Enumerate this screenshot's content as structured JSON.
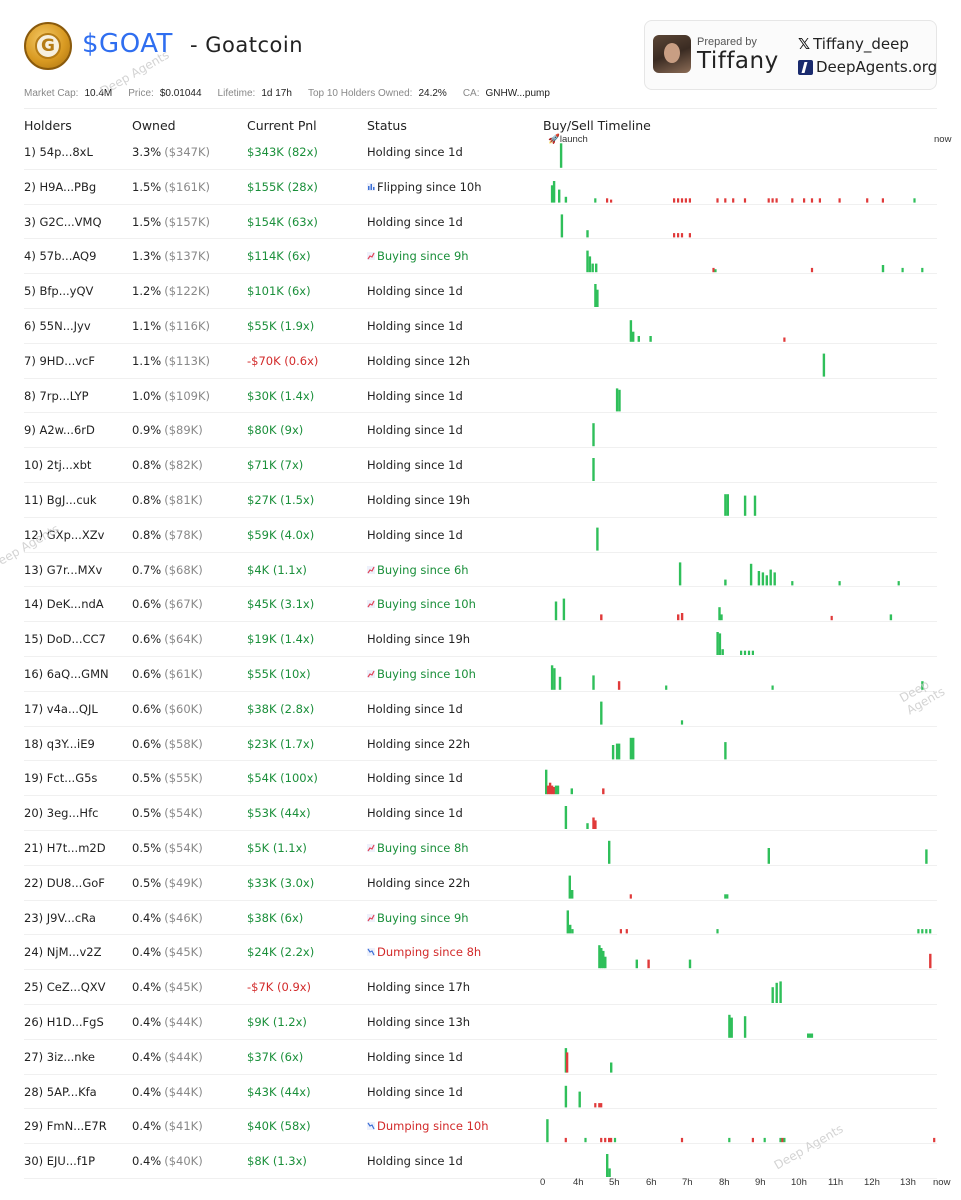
{
  "header": {
    "logo_letter": "G",
    "ticker": "$GOAT",
    "name": "- Goatcoin",
    "prepared_label": "Prepared by",
    "prepared_name": "Tiffany",
    "twitter_handle": "Tiffany_deep",
    "website": "DeepAgents.org",
    "x_icon": "𝕏"
  },
  "stats": {
    "market_cap_label": "Market Cap:",
    "market_cap": "10.4M",
    "price_label": "Price:",
    "price": "$0.01044",
    "lifetime_label": "Lifetime:",
    "lifetime": "1d 17h",
    "top10_label": "Top 10 Holders Owned:",
    "top10": "24.2%",
    "ca_label": "CA:",
    "ca": "GNHW...pump"
  },
  "columns": {
    "holders": "Holders",
    "owned": "Owned",
    "pnl": "Current Pnl",
    "status": "Status",
    "timeline": "Buy/Sell Timeline"
  },
  "timeline_labels": {
    "launch": "🚀launch",
    "now": "now"
  },
  "axis": [
    "0",
    "4h",
    "5h",
    "6h",
    "7h",
    "8h",
    "9h",
    "10h",
    "11h",
    "12h",
    "13h",
    "now"
  ],
  "watermark": "Deep Agents",
  "colors": {
    "buy": "#2fbf5a",
    "sell": "#e03a3a",
    "accent": "#2f6ef0"
  },
  "holders": [
    {
      "holder": "1) 54p...8xL",
      "pct": "3.3%",
      "usd": "($347K)",
      "pnl": "$343K (82x)",
      "pnl_sign": "pos",
      "status": "Holding since 1d",
      "kind": "holding"
    },
    {
      "holder": "2) H9A...PBg",
      "pct": "1.5%",
      "usd": "($161K)",
      "pnl": "$155K (28x)",
      "pnl_sign": "pos",
      "status": "Flipping since 10h",
      "kind": "flipping"
    },
    {
      "holder": "3) G2C...VMQ",
      "pct": "1.5%",
      "usd": "($157K)",
      "pnl": "$154K (63x)",
      "pnl_sign": "pos",
      "status": "Holding since 1d",
      "kind": "holding"
    },
    {
      "holder": "4) 57b...AQ9",
      "pct": "1.3%",
      "usd": "($137K)",
      "pnl": "$114K (6x)",
      "pnl_sign": "pos",
      "status": "Buying since 9h",
      "kind": "buying"
    },
    {
      "holder": "5) Bfp...yQV",
      "pct": "1.2%",
      "usd": "($122K)",
      "pnl": "$101K (6x)",
      "pnl_sign": "pos",
      "status": "Holding since 1d",
      "kind": "holding"
    },
    {
      "holder": "6) 55N...Jyv",
      "pct": "1.1%",
      "usd": "($116K)",
      "pnl": "$55K (1.9x)",
      "pnl_sign": "pos",
      "status": "Holding since 1d",
      "kind": "holding"
    },
    {
      "holder": "7) 9HD...vcF",
      "pct": "1.1%",
      "usd": "($113K)",
      "pnl": "-$70K (0.6x)",
      "pnl_sign": "neg",
      "status": "Holding since 12h",
      "kind": "holding"
    },
    {
      "holder": "8) 7rp...LYP",
      "pct": "1.0%",
      "usd": "($109K)",
      "pnl": "$30K (1.4x)",
      "pnl_sign": "pos",
      "status": "Holding since 1d",
      "kind": "holding"
    },
    {
      "holder": "9) A2w...6rD",
      "pct": "0.9%",
      "usd": "($89K)",
      "pnl": "$80K (9x)",
      "pnl_sign": "pos",
      "status": "Holding since 1d",
      "kind": "holding"
    },
    {
      "holder": "10) 2tj...xbt",
      "pct": "0.8%",
      "usd": "($82K)",
      "pnl": "$71K (7x)",
      "pnl_sign": "pos",
      "status": "Holding since 1d",
      "kind": "holding"
    },
    {
      "holder": "11) BgJ...cuk",
      "pct": "0.8%",
      "usd": "($81K)",
      "pnl": "$27K (1.5x)",
      "pnl_sign": "pos",
      "status": "Holding since 19h",
      "kind": "holding"
    },
    {
      "holder": "12) GXp...XZv",
      "pct": "0.8%",
      "usd": "($78K)",
      "pnl": "$59K (4.0x)",
      "pnl_sign": "pos",
      "status": "Holding since 1d",
      "kind": "holding"
    },
    {
      "holder": "13) G7r...MXv",
      "pct": "0.7%",
      "usd": "($68K)",
      "pnl": "$4K (1.1x)",
      "pnl_sign": "pos",
      "status": "Buying since 6h",
      "kind": "buying"
    },
    {
      "holder": "14) DeK...ndA",
      "pct": "0.6%",
      "usd": "($67K)",
      "pnl": "$45K (3.1x)",
      "pnl_sign": "pos",
      "status": "Buying since 10h",
      "kind": "buying"
    },
    {
      "holder": "15) DoD...CC7",
      "pct": "0.6%",
      "usd": "($64K)",
      "pnl": "$19K (1.4x)",
      "pnl_sign": "pos",
      "status": "Holding since 19h",
      "kind": "holding"
    },
    {
      "holder": "16) 6aQ...GMN",
      "pct": "0.6%",
      "usd": "($61K)",
      "pnl": "$55K (10x)",
      "pnl_sign": "pos",
      "status": "Buying since 10h",
      "kind": "buying"
    },
    {
      "holder": "17) v4a...QJL",
      "pct": "0.6%",
      "usd": "($60K)",
      "pnl": "$38K (2.8x)",
      "pnl_sign": "pos",
      "status": "Holding since 1d",
      "kind": "holding"
    },
    {
      "holder": "18) q3Y...iE9",
      "pct": "0.6%",
      "usd": "($58K)",
      "pnl": "$23K (1.7x)",
      "pnl_sign": "pos",
      "status": "Holding since 22h",
      "kind": "holding"
    },
    {
      "holder": "19) Fct...G5s",
      "pct": "0.5%",
      "usd": "($55K)",
      "pnl": "$54K (100x)",
      "pnl_sign": "pos",
      "status": "Holding since 1d",
      "kind": "holding"
    },
    {
      "holder": "20) 3eg...Hfc",
      "pct": "0.5%",
      "usd": "($54K)",
      "pnl": "$53K (44x)",
      "pnl_sign": "pos",
      "status": "Holding since 1d",
      "kind": "holding"
    },
    {
      "holder": "21) H7t...m2D",
      "pct": "0.5%",
      "usd": "($54K)",
      "pnl": "$5K (1.1x)",
      "pnl_sign": "pos",
      "status": "Buying since 8h",
      "kind": "buying"
    },
    {
      "holder": "22) DU8...GoF",
      "pct": "0.5%",
      "usd": "($49K)",
      "pnl": "$33K (3.0x)",
      "pnl_sign": "pos",
      "status": "Holding since 22h",
      "kind": "holding"
    },
    {
      "holder": "23) J9V...cRa",
      "pct": "0.4%",
      "usd": "($46K)",
      "pnl": "$38K (6x)",
      "pnl_sign": "pos",
      "status": "Buying since 9h",
      "kind": "buying"
    },
    {
      "holder": "24) NjM...v2Z",
      "pct": "0.4%",
      "usd": "($45K)",
      "pnl": "$24K (2.2x)",
      "pnl_sign": "pos",
      "status": "Dumping since 8h",
      "kind": "dumping"
    },
    {
      "holder": "25) CeZ...QXV",
      "pct": "0.4%",
      "usd": "($45K)",
      "pnl": "-$7K (0.9x)",
      "pnl_sign": "neg",
      "status": "Holding since 17h",
      "kind": "holding"
    },
    {
      "holder": "26) H1D...FgS",
      "pct": "0.4%",
      "usd": "($44K)",
      "pnl": "$9K (1.2x)",
      "pnl_sign": "pos",
      "status": "Holding since 13h",
      "kind": "holding"
    },
    {
      "holder": "27) 3iz...nke",
      "pct": "0.4%",
      "usd": "($44K)",
      "pnl": "$37K (6x)",
      "pnl_sign": "pos",
      "status": "Holding since 1d",
      "kind": "holding"
    },
    {
      "holder": "28) 5AP...Kfa",
      "pct": "0.4%",
      "usd": "($44K)",
      "pnl": "$43K (44x)",
      "pnl_sign": "pos",
      "status": "Holding since 1d",
      "kind": "holding"
    },
    {
      "holder": "29) FmN...E7R",
      "pct": "0.4%",
      "usd": "($41K)",
      "pnl": "$40K (58x)",
      "pnl_sign": "pos",
      "status": "Dumping since 10h",
      "kind": "dumping"
    },
    {
      "holder": "30) EJU...f1P",
      "pct": "0.4%",
      "usd": "($40K)",
      "pnl": "$8K (1.3x)",
      "pnl_sign": "pos",
      "status": "Holding since 1d",
      "kind": "holding"
    }
  ],
  "timeline_events": [
    [
      [
        4.3,
        0.85,
        "b"
      ]
    ],
    [
      [
        2.0,
        0.6,
        "b"
      ],
      [
        2.5,
        0.75,
        "b"
      ],
      [
        3.8,
        0.45,
        "b"
      ],
      [
        5.5,
        0.2,
        "b"
      ],
      [
        13,
        0.15,
        "b"
      ],
      [
        16,
        0.15,
        "s"
      ],
      [
        17,
        0.1,
        "s"
      ],
      [
        33,
        0.15,
        "s"
      ],
      [
        34,
        0.15,
        "s"
      ],
      [
        35,
        0.15,
        "s"
      ],
      [
        36,
        0.15,
        "s"
      ],
      [
        37,
        0.15,
        "s"
      ],
      [
        44,
        0.15,
        "s"
      ],
      [
        46,
        0.15,
        "s"
      ],
      [
        48,
        0.15,
        "s"
      ],
      [
        51,
        0.15,
        "s"
      ],
      [
        57,
        0.15,
        "s"
      ],
      [
        58,
        0.15,
        "s"
      ],
      [
        59,
        0.15,
        "s"
      ],
      [
        63,
        0.15,
        "s"
      ],
      [
        66,
        0.15,
        "s"
      ],
      [
        68,
        0.15,
        "s"
      ],
      [
        70,
        0.15,
        "s"
      ],
      [
        75,
        0.15,
        "s"
      ],
      [
        82,
        0.15,
        "s"
      ],
      [
        86,
        0.15,
        "s"
      ],
      [
        94,
        0.15,
        "b"
      ]
    ],
    [
      [
        4.5,
        0.8,
        "b"
      ],
      [
        11,
        0.25,
        "b"
      ],
      [
        33,
        0.15,
        "s"
      ],
      [
        34,
        0.15,
        "s"
      ],
      [
        35,
        0.15,
        "s"
      ],
      [
        37,
        0.15,
        "s"
      ]
    ],
    [
      [
        11,
        0.75,
        "b"
      ],
      [
        11.6,
        0.55,
        "b"
      ],
      [
        12.3,
        0.3,
        "b"
      ],
      [
        13.2,
        0.3,
        "b"
      ],
      [
        43,
        0.15,
        "s"
      ],
      [
        43.5,
        0.1,
        "b"
      ],
      [
        68,
        0.15,
        "s"
      ],
      [
        86,
        0.25,
        "b"
      ],
      [
        91,
        0.15,
        "b"
      ],
      [
        96,
        0.15,
        "b"
      ]
    ],
    [
      [
        13,
        0.8,
        "b"
      ],
      [
        13.5,
        0.6,
        "b"
      ]
    ],
    [
      [
        22,
        0.75,
        "b"
      ],
      [
        22.6,
        0.35,
        "b"
      ],
      [
        24,
        0.2,
        "b"
      ],
      [
        27,
        0.2,
        "b"
      ],
      [
        61,
        0.15,
        "s"
      ]
    ],
    [
      [
        71,
        0.8,
        "b"
      ]
    ],
    [
      [
        18.5,
        0.8,
        "b"
      ],
      [
        19.1,
        0.75,
        "b"
      ]
    ],
    [
      [
        12.5,
        0.8,
        "b"
      ]
    ],
    [
      [
        12.5,
        0.8,
        "b"
      ]
    ],
    [
      [
        46,
        0.75,
        "b"
      ],
      [
        46.6,
        0.75,
        "b"
      ],
      [
        51,
        0.7,
        "b"
      ],
      [
        53.5,
        0.7,
        "b"
      ]
    ],
    [
      [
        13.5,
        0.8,
        "b"
      ]
    ],
    [
      [
        34.5,
        0.8,
        "b"
      ],
      [
        46,
        0.2,
        "b"
      ],
      [
        52.5,
        0.75,
        "b"
      ],
      [
        54.5,
        0.5,
        "b"
      ],
      [
        55.5,
        0.45,
        "b"
      ],
      [
        56.5,
        0.35,
        "b"
      ],
      [
        57.5,
        0.55,
        "b"
      ],
      [
        58.5,
        0.45,
        "b"
      ],
      [
        63,
        0.15,
        "b"
      ],
      [
        75,
        0.15,
        "b"
      ],
      [
        90,
        0.15,
        "b"
      ]
    ],
    [
      [
        3,
        0.65,
        "b"
      ],
      [
        5,
        0.75,
        "b"
      ],
      [
        14.5,
        0.2,
        "s"
      ],
      [
        34,
        0.2,
        "s"
      ],
      [
        35,
        0.25,
        "s"
      ],
      [
        44.5,
        0.45,
        "b"
      ],
      [
        45,
        0.2,
        "b"
      ],
      [
        73,
        0.15,
        "s"
      ],
      [
        88,
        0.2,
        "b"
      ]
    ],
    [
      [
        44,
        0.8,
        "b"
      ],
      [
        44.6,
        0.75,
        "b"
      ],
      [
        45.3,
        0.2,
        "b"
      ],
      [
        50,
        0.15,
        "b"
      ],
      [
        51,
        0.15,
        "b"
      ],
      [
        52,
        0.15,
        "b"
      ],
      [
        53,
        0.15,
        "b"
      ]
    ],
    [
      [
        2,
        0.85,
        "b"
      ],
      [
        2.6,
        0.75,
        "b"
      ],
      [
        4,
        0.45,
        "b"
      ],
      [
        12.5,
        0.5,
        "b"
      ],
      [
        19,
        0.3,
        "s"
      ],
      [
        31,
        0.15,
        "b"
      ],
      [
        58,
        0.15,
        "b"
      ],
      [
        96,
        0.3,
        "b"
      ]
    ],
    [
      [
        14.5,
        0.8,
        "b"
      ],
      [
        35,
        0.15,
        "b"
      ]
    ],
    [
      [
        17.5,
        0.5,
        "b"
      ],
      [
        18.5,
        0.55,
        "b"
      ],
      [
        19,
        0.55,
        "b"
      ],
      [
        22,
        0.75,
        "b"
      ],
      [
        22.6,
        0.75,
        "b"
      ],
      [
        46,
        0.6,
        "b"
      ]
    ],
    [
      [
        0.5,
        0.85,
        "b"
      ],
      [
        1,
        0.3,
        "s"
      ],
      [
        1.5,
        0.4,
        "s"
      ],
      [
        2,
        0.3,
        "s"
      ],
      [
        2.5,
        0.25,
        "s"
      ],
      [
        3,
        0.3,
        "b"
      ],
      [
        3.5,
        0.3,
        "b"
      ],
      [
        7,
        0.2,
        "b"
      ],
      [
        15,
        0.2,
        "s"
      ]
    ],
    [
      [
        5.5,
        0.8,
        "b"
      ],
      [
        11,
        0.2,
        "b"
      ],
      [
        12.5,
        0.4,
        "s"
      ],
      [
        13,
        0.3,
        "s"
      ]
    ],
    [
      [
        16.5,
        0.8,
        "b"
      ],
      [
        57,
        0.55,
        "b"
      ],
      [
        97,
        0.5,
        "b"
      ]
    ],
    [
      [
        6.5,
        0.8,
        "b"
      ],
      [
        7.1,
        0.3,
        "b"
      ],
      [
        22,
        0.15,
        "s"
      ],
      [
        46,
        0.15,
        "b"
      ],
      [
        46.5,
        0.15,
        "b"
      ]
    ],
    [
      [
        6,
        0.8,
        "b"
      ],
      [
        6.6,
        0.3,
        "b"
      ],
      [
        7.2,
        0.15,
        "b"
      ],
      [
        19.5,
        0.15,
        "s"
      ],
      [
        21,
        0.15,
        "s"
      ],
      [
        44,
        0.15,
        "b"
      ],
      [
        95,
        0.15,
        "b"
      ],
      [
        96,
        0.15,
        "b"
      ],
      [
        97,
        0.15,
        "b"
      ],
      [
        98,
        0.15,
        "b"
      ]
    ],
    [
      [
        14,
        0.8,
        "b"
      ],
      [
        14.5,
        0.7,
        "b"
      ],
      [
        15,
        0.6,
        "b"
      ],
      [
        15.5,
        0.4,
        "b"
      ],
      [
        23.5,
        0.3,
        "b"
      ],
      [
        26.5,
        0.3,
        "s"
      ],
      [
        37,
        0.3,
        "b"
      ],
      [
        98,
        0.5,
        "s"
      ]
    ],
    [
      [
        58,
        0.55,
        "b"
      ],
      [
        59,
        0.7,
        "b"
      ],
      [
        60,
        0.75,
        "b"
      ]
    ],
    [
      [
        47,
        0.8,
        "b"
      ],
      [
        47.6,
        0.7,
        "b"
      ],
      [
        51,
        0.75,
        "b"
      ],
      [
        67,
        0.15,
        "b"
      ],
      [
        67.5,
        0.15,
        "b"
      ],
      [
        68,
        0.15,
        "b"
      ]
    ],
    [
      [
        5.5,
        0.85,
        "b"
      ],
      [
        5.8,
        0.7,
        "s"
      ],
      [
        17,
        0.35,
        "b"
      ]
    ],
    [
      [
        5.5,
        0.75,
        "b"
      ],
      [
        9,
        0.55,
        "b"
      ],
      [
        13,
        0.15,
        "s"
      ],
      [
        14,
        0.15,
        "s"
      ],
      [
        14.5,
        0.15,
        "s"
      ]
    ],
    [
      [
        0.8,
        0.8,
        "b"
      ],
      [
        5.5,
        0.15,
        "s"
      ],
      [
        10.5,
        0.15,
        "b"
      ],
      [
        14.5,
        0.15,
        "s"
      ],
      [
        15.5,
        0.15,
        "s"
      ],
      [
        16.5,
        0.15,
        "s"
      ],
      [
        17,
        0.15,
        "s"
      ],
      [
        18,
        0.15,
        "b"
      ],
      [
        35,
        0.15,
        "s"
      ],
      [
        47,
        0.15,
        "b"
      ],
      [
        53,
        0.15,
        "s"
      ],
      [
        56,
        0.15,
        "b"
      ],
      [
        60,
        0.15,
        "b"
      ],
      [
        60.5,
        0.15,
        "s"
      ],
      [
        61,
        0.15,
        "b"
      ],
      [
        99,
        0.15,
        "s"
      ]
    ],
    [
      [
        16,
        0.8,
        "b"
      ],
      [
        16.6,
        0.3,
        "b"
      ]
    ]
  ]
}
